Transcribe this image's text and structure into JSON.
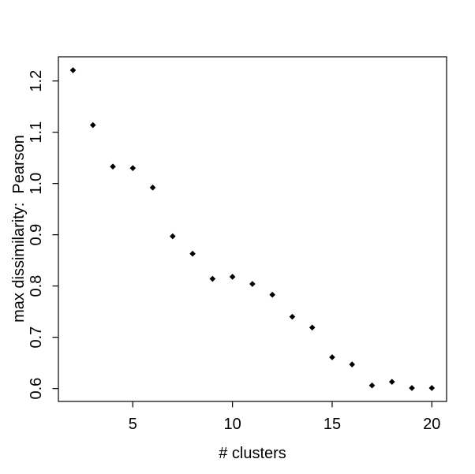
{
  "chart_data": {
    "type": "scatter",
    "title": "",
    "xlabel": "# clusters",
    "ylabel": "max dissimilarity:  Pearson",
    "x": [
      2,
      3,
      4,
      5,
      6,
      7,
      8,
      9,
      10,
      11,
      12,
      13,
      14,
      15,
      16,
      17,
      18,
      19,
      20
    ],
    "y": [
      1.221,
      1.114,
      1.033,
      1.03,
      0.992,
      0.897,
      0.863,
      0.814,
      0.818,
      0.804,
      0.783,
      0.74,
      0.719,
      0.661,
      0.647,
      0.606,
      0.613,
      0.601,
      0.601
    ],
    "xlim": [
      1.268,
      20.74
    ],
    "ylim": [
      0.5748,
      1.2472
    ],
    "x_ticks": {
      "values": [
        5,
        10,
        15,
        20
      ],
      "labels": [
        "5",
        "10",
        "15",
        "20"
      ]
    },
    "y_ticks": {
      "values": [
        0.6,
        0.7,
        0.8,
        0.9,
        1.0,
        1.1,
        1.2
      ],
      "labels": [
        "0.6",
        "0.7",
        "0.8",
        "0.9",
        "1.0",
        "1.1",
        "1.2"
      ]
    },
    "grid": false,
    "legend": null,
    "marker": {
      "shape": "diamond",
      "color": "#000000",
      "size": 7.6
    },
    "axis_color": "#000000",
    "background_color": "#ffffff"
  }
}
